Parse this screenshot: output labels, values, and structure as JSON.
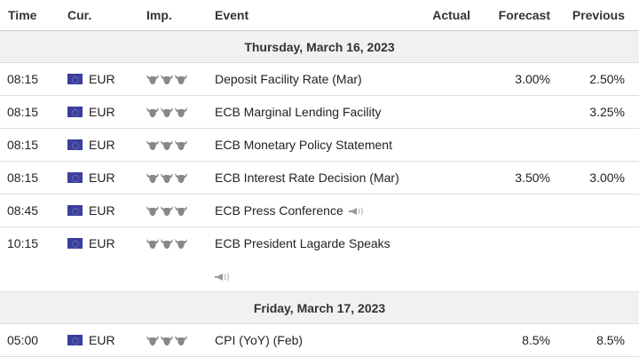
{
  "header": {
    "time": "Time",
    "cur": "Cur.",
    "imp": "Imp.",
    "event": "Event",
    "actual": "Actual",
    "forecast": "Forecast",
    "previous": "Previous"
  },
  "days": [
    {
      "date": "Thursday, March 16, 2023",
      "events": [
        {
          "time": "08:15",
          "currency": "EUR",
          "importance": 3,
          "event": "Deposit Facility Rate (Mar)",
          "actual": "",
          "forecast": "3.00%",
          "previous": "2.50%"
        },
        {
          "time": "08:15",
          "currency": "EUR",
          "importance": 3,
          "event": "ECB Marginal Lending Facility",
          "actual": "",
          "forecast": "",
          "previous": "3.25%"
        },
        {
          "time": "08:15",
          "currency": "EUR",
          "importance": 3,
          "event": "ECB Monetary Policy Statement",
          "actual": "",
          "forecast": "",
          "previous": ""
        },
        {
          "time": "08:15",
          "currency": "EUR",
          "importance": 3,
          "event": "ECB Interest Rate Decision (Mar)",
          "actual": "",
          "forecast": "3.50%",
          "previous": "3.00%"
        },
        {
          "time": "08:45",
          "currency": "EUR",
          "importance": 3,
          "event": "ECB Press Conference",
          "speech": true,
          "actual": "",
          "forecast": "",
          "previous": ""
        },
        {
          "time": "10:15",
          "currency": "EUR",
          "importance": 3,
          "event": "ECB President Lagarde Speaks",
          "speech": true,
          "actual": "",
          "forecast": "",
          "previous": ""
        }
      ]
    },
    {
      "date": "Friday, March 17, 2023",
      "events": [
        {
          "time": "05:00",
          "currency": "EUR",
          "importance": 3,
          "event": "CPI (YoY) (Feb)",
          "actual": "",
          "forecast": "8.5%",
          "previous": "8.5%"
        }
      ]
    }
  ],
  "icons": {
    "flag": "eu-flag-icon",
    "importance": "bull-icon",
    "speech": "speaker-icon"
  },
  "colors": {
    "date_row_bg": "#f1f1f1",
    "bull": "#888888",
    "flag": "#3b3f9b"
  }
}
